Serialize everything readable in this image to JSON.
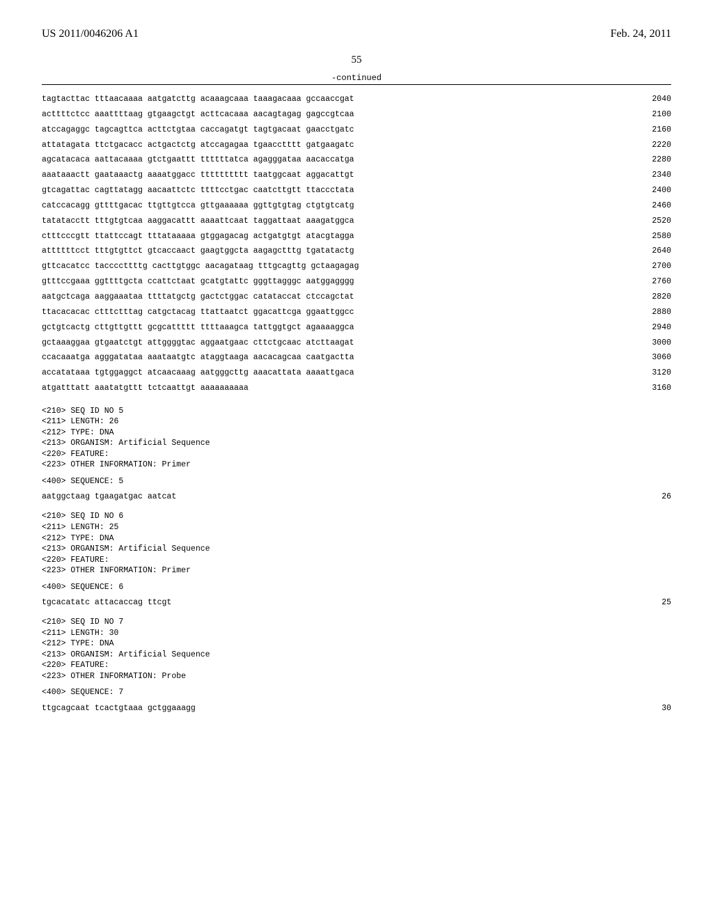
{
  "header": {
    "left": "US 2011/0046206 A1",
    "right": "Feb. 24, 2011"
  },
  "page_number": "55",
  "continued_label": "-continued",
  "sequence_rows": [
    {
      "text": "tagtacttac tttaacaaaa aatgatcttg acaaagcaaa taaagacaaa gccaaccgat",
      "num": "2040"
    },
    {
      "text": "acttttctcc aaattttaag gtgaagctgt acttcacaaa aacagtagag gagccgtcaa",
      "num": "2100"
    },
    {
      "text": "atccagaggc tagcagttca acttctgtaa caccagatgt tagtgacaat gaacctgatc",
      "num": "2160"
    },
    {
      "text": "attatagata ttctgacacc actgactctg atccagagaa tgaacctttt gatgaagatc",
      "num": "2220"
    },
    {
      "text": "agcatacaca aattacaaaa gtctgaattt ttttttatca agagggataa aacaccatga",
      "num": "2280"
    },
    {
      "text": "aaataaactt gaataaactg aaaatggacc tttttttttt taatggcaat aggacattgt",
      "num": "2340"
    },
    {
      "text": "gtcagattac cagttatagg aacaattctc ttttcctgac caatcttgtt ttaccctata",
      "num": "2400"
    },
    {
      "text": "catccacagg gttttgacac ttgttgtcca gttgaaaaaa ggttgtgtag ctgtgtcatg",
      "num": "2460"
    },
    {
      "text": "tatatacctt tttgtgtcaa aaggacattt aaaattcaat taggattaat aaagatggca",
      "num": "2520"
    },
    {
      "text": "ctttcccgtt ttattccagt tttataaaaa gtggagacag actgatgtgt atacgtagga",
      "num": "2580"
    },
    {
      "text": "attttttcct tttgtgttct gtcaccaact gaagtggcta aagagctttg tgatatactg",
      "num": "2640"
    },
    {
      "text": "gttcacatcc taccccttttg cacttgtggc aacagataag tttgcagttg gctaagagag",
      "num": "2700"
    },
    {
      "text": "gtttccgaaa ggttttgcta ccattctaat gcatgtattc gggttagggc aatggagggg",
      "num": "2760"
    },
    {
      "text": "aatgctcaga aaggaaataa ttttatgctg gactctggac catataccat ctccagctat",
      "num": "2820"
    },
    {
      "text": "ttacacacac ctttctttag catgctacag ttattaatct ggacattcga ggaattggcc",
      "num": "2880"
    },
    {
      "text": "gctgtcactg cttgttgttt gcgcattttt ttttaaagca tattggtgct agaaaaggca",
      "num": "2940"
    },
    {
      "text": "gctaaaggaa gtgaatctgt attggggtac aggaatgaac cttctgcaac atcttaagat",
      "num": "3000"
    },
    {
      "text": "ccacaaatga agggatataa aaataatgtc ataggtaaga aacacagcaa caatgactta",
      "num": "3060"
    },
    {
      "text": "accatataaa tgtggaggct atcaacaaag aatgggcttg aaacattata aaaattgaca",
      "num": "3120"
    },
    {
      "text": "atgatttatt aaatatgttt tctcaattgt aaaaaaaaaa",
      "num": "3160"
    }
  ],
  "entries": [
    {
      "meta": "<210> SEQ ID NO 5\n<211> LENGTH: 26\n<212> TYPE: DNA\n<213> ORGANISM: Artificial Sequence\n<220> FEATURE:\n<223> OTHER INFORMATION: Primer",
      "seq_label": "<400> SEQUENCE: 5",
      "seq_text": "aatggctaag tgaagatgac aatcat",
      "seq_num": "26"
    },
    {
      "meta": "<210> SEQ ID NO 6\n<211> LENGTH: 25\n<212> TYPE: DNA\n<213> ORGANISM: Artificial Sequence\n<220> FEATURE:\n<223> OTHER INFORMATION: Primer",
      "seq_label": "<400> SEQUENCE: 6",
      "seq_text": "tgcacatatc attacaccag ttcgt",
      "seq_num": "25"
    },
    {
      "meta": "<210> SEQ ID NO 7\n<211> LENGTH: 30\n<212> TYPE: DNA\n<213> ORGANISM: Artificial Sequence\n<220> FEATURE:\n<223> OTHER INFORMATION: Probe",
      "seq_label": "<400> SEQUENCE: 7",
      "seq_text": "ttgcagcaat tcactgtaaa gctggaaagg",
      "seq_num": "30"
    }
  ]
}
